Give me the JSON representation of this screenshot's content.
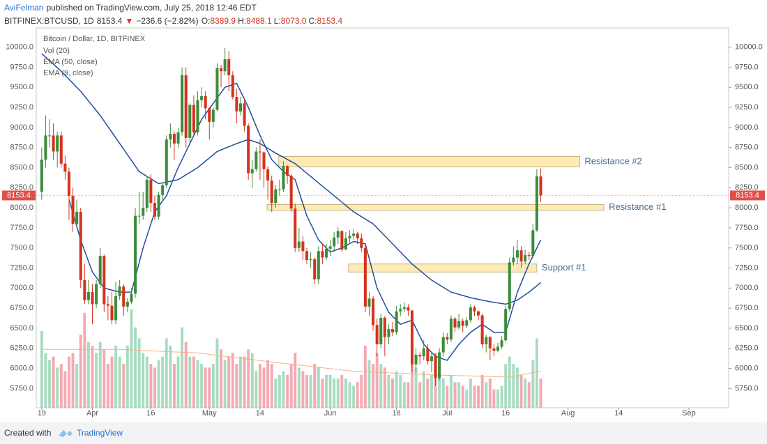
{
  "header": {
    "author": "AviFelman",
    "published": "published on TradingView.com, July 25, 2018 12:46 EDT"
  },
  "quote": {
    "symbol": "BITFINEX:BTCUSD, 1D",
    "last": "8153.4",
    "arrow": "▼",
    "change": "−236.6 (−2.82%)",
    "ohlc": [
      {
        "label": "O:",
        "value": "8389.9"
      },
      {
        "label": "H:",
        "value": "8488.1"
      },
      {
        "label": "L:",
        "value": "8073.0"
      },
      {
        "label": "C:",
        "value": "8153.4"
      }
    ]
  },
  "footer": {
    "created": "Created with",
    "brand": "TradingView"
  },
  "chart_data": {
    "type": "candlestick",
    "title": "Bitcoin / Dollar, 1D, BITFINEX",
    "up_color": "#3c8c3c",
    "down_color": "#d5321d",
    "volume_up_color": "#a8dcc0",
    "volume_down_color": "#f5a9b1",
    "open": [
      8200,
      8600,
      8900,
      8900,
      8700,
      8900,
      8550,
      8450,
      8150,
      7800,
      7950,
      7100,
      6850,
      6950,
      6800,
      7050,
      7400,
      6800,
      6780,
      6600,
      6900,
      7020,
      6770,
      6830,
      6930,
      7900,
      7900,
      8000,
      8350,
      8060,
      7890,
      8160,
      8280,
      8850,
      8920,
      8800,
      8940,
      9650,
      8870,
      9280,
      8940,
      9340,
      9390,
      9240,
      9070,
      9220,
      9740,
      9700,
      9850,
      9650,
      9380,
      9200,
      9300,
      9020,
      8430,
      8480,
      8700,
      8690,
      8480,
      8340,
      8060,
      8230,
      8230,
      8520,
      8400,
      7990,
      7500,
      7580,
      7460,
      7350,
      7360,
      7110,
      7460,
      7380,
      7490,
      7520,
      7630,
      7710,
      7480,
      7620,
      7650,
      7680,
      7620,
      7500,
      6770,
      6870,
      6540,
      6300,
      6630,
      6390,
      6490,
      6450,
      6710,
      6740,
      6760,
      6720,
      6050,
      6170,
      6150,
      6250,
      6090,
      6150,
      5880,
      6200,
      6390,
      6360,
      6620,
      6510,
      6590,
      6530,
      6600,
      6760,
      6710,
      6660,
      6300,
      6390,
      6250,
      6220,
      6270,
      6350,
      6740,
      7320,
      7380,
      7470,
      7330,
      7410,
      7400,
      7720,
      8389.9
    ],
    "high": [
      8750,
      9150,
      9100,
      9050,
      8950,
      8950,
      8650,
      8500,
      8250,
      8100,
      8000,
      7300,
      7100,
      7050,
      7100,
      7500,
      7420,
      6900,
      6950,
      7080,
      7100,
      7050,
      6880,
      7000,
      8000,
      8200,
      8200,
      8400,
      8420,
      8150,
      8200,
      8300,
      8900,
      9050,
      8950,
      9000,
      9750,
      9750,
      9300,
      9400,
      9450,
      9500,
      9450,
      9250,
      9250,
      9800,
      9780,
      9990,
      9950,
      9700,
      9480,
      9380,
      9350,
      9050,
      8600,
      8750,
      8850,
      8700,
      8520,
      8400,
      8280,
      8350,
      8580,
      8530,
      8420,
      8050,
      7750,
      7650,
      7500,
      7450,
      7380,
      7520,
      7550,
      7550,
      7600,
      7700,
      7760,
      7720,
      7700,
      7720,
      7740,
      7700,
      7680,
      7520,
      6950,
      6900,
      6620,
      6680,
      6650,
      6550,
      6580,
      6780,
      6800,
      6820,
      6800,
      6730,
      6250,
      6200,
      6350,
      6300,
      6200,
      6180,
      6250,
      6450,
      6440,
      6660,
      6640,
      6680,
      6620,
      6640,
      6800,
      6780,
      6720,
      6680,
      6420,
      6400,
      6300,
      6320,
      6400,
      6780,
      7380,
      7520,
      7600,
      7520,
      7480,
      7450,
      7800,
      8480,
      8488.1
    ],
    "low": [
      8100,
      8500,
      8750,
      8600,
      8500,
      8500,
      8350,
      7850,
      7700,
      7750,
      7000,
      6800,
      6800,
      6550,
      6750,
      7000,
      6700,
      6600,
      6550,
      6550,
      6850,
      6650,
      6700,
      6800,
      6880,
      7800,
      7850,
      7950,
      7950,
      7850,
      7850,
      8100,
      8250,
      8750,
      8600,
      8750,
      8900,
      8750,
      8800,
      8900,
      8900,
      9250,
      9100,
      8850,
      9000,
      9200,
      9500,
      9650,
      9450,
      9350,
      9050,
      9150,
      8950,
      8350,
      8250,
      8450,
      8350,
      8250,
      8100,
      7950,
      8000,
      8150,
      8200,
      8300,
      7950,
      7450,
      7450,
      7350,
      7300,
      7250,
      7050,
      7050,
      7300,
      7350,
      7400,
      7450,
      7550,
      7450,
      7470,
      7550,
      7600,
      7550,
      7450,
      6700,
      6650,
      6470,
      6150,
      6250,
      6150,
      6300,
      6400,
      6420,
      6650,
      6700,
      6650,
      5950,
      5950,
      6050,
      6100,
      6050,
      5950,
      5780,
      5850,
      6150,
      6300,
      6330,
      6450,
      6480,
      6450,
      6500,
      6570,
      6650,
      6600,
      6250,
      6200,
      6100,
      6150,
      6200,
      6240,
      6330,
      6710,
      7280,
      7300,
      7250,
      7300,
      7350,
      7380,
      7700,
      8073.0
    ],
    "close": [
      8600,
      8900,
      8900,
      8700,
      8900,
      8550,
      8450,
      8150,
      7800,
      7950,
      7100,
      6850,
      6950,
      6800,
      7050,
      7400,
      6800,
      6780,
      6600,
      6900,
      7020,
      6770,
      6830,
      6930,
      7900,
      7900,
      8000,
      8350,
      8060,
      7890,
      8160,
      8280,
      8850,
      8920,
      8800,
      8940,
      9650,
      8870,
      9280,
      8940,
      9340,
      9390,
      9240,
      9070,
      9220,
      9740,
      9700,
      9850,
      9650,
      9380,
      9200,
      9300,
      9020,
      8430,
      8480,
      8700,
      8690,
      8480,
      8340,
      8060,
      8230,
      8230,
      8520,
      8400,
      7990,
      7500,
      7580,
      7460,
      7350,
      7360,
      7110,
      7460,
      7380,
      7490,
      7520,
      7630,
      7710,
      7480,
      7620,
      7650,
      7680,
      7620,
      7500,
      6770,
      6870,
      6540,
      6300,
      6630,
      6390,
      6490,
      6450,
      6710,
      6740,
      6760,
      6720,
      6050,
      6170,
      6150,
      6250,
      6090,
      6150,
      5880,
      6200,
      6390,
      6360,
      6620,
      6510,
      6590,
      6530,
      6600,
      6760,
      6710,
      6660,
      6300,
      6390,
      6250,
      6220,
      6270,
      6350,
      6740,
      7320,
      7380,
      7470,
      7330,
      7410,
      7400,
      7720,
      8389.9,
      8153.4
    ],
    "volume": [
      105,
      75,
      65,
      70,
      55,
      60,
      50,
      70,
      75,
      60,
      100,
      130,
      90,
      85,
      75,
      90,
      80,
      60,
      70,
      85,
      70,
      60,
      85,
      135,
      110,
      95,
      75,
      70,
      60,
      55,
      65,
      70,
      95,
      85,
      60,
      70,
      110,
      90,
      70,
      70,
      65,
      60,
      55,
      55,
      60,
      95,
      80,
      65,
      70,
      75,
      60,
      70,
      70,
      80,
      75,
      50,
      60,
      55,
      65,
      60,
      40,
      45,
      50,
      45,
      60,
      75,
      55,
      50,
      45,
      45,
      60,
      55,
      40,
      45,
      45,
      40,
      40,
      45,
      40,
      35,
      30,
      35,
      45,
      85,
      65,
      60,
      75,
      60,
      55,
      45,
      40,
      50,
      45,
      35,
      35,
      80,
      55,
      35,
      50,
      40,
      45,
      75,
      55,
      40,
      30,
      45,
      35,
      35,
      30,
      25,
      40,
      30,
      30,
      45,
      35,
      40,
      25,
      25,
      30,
      60,
      70,
      60,
      55,
      45,
      40,
      35,
      65,
      95,
      40
    ],
    "volume_lim": [
      0,
      520
    ],
    "lines": [
      {
        "name": "Vol (20)",
        "color": "#f4b183",
        "scale": "volume",
        "x": [
          0,
          20,
          40,
          60,
          80,
          100,
          120,
          128
        ],
        "values": [
          80,
          80,
          75,
          62,
          50,
          45,
          42,
          50
        ]
      },
      {
        "name": "EMA (50, close)",
        "color": "#1f4e9c",
        "x": [
          0,
          5,
          10,
          15,
          20,
          25,
          30,
          35,
          40,
          45,
          50,
          53,
          56,
          60,
          65,
          70,
          75,
          80,
          85,
          90,
          95,
          100,
          105,
          110,
          115,
          119,
          122,
          125,
          128
        ],
        "values": [
          9920,
          9700,
          9450,
          9150,
          8800,
          8450,
          8300,
          8350,
          8500,
          8700,
          8800,
          8850,
          8800,
          8680,
          8550,
          8350,
          8150,
          7950,
          7800,
          7550,
          7300,
          7100,
          6950,
          6880,
          6830,
          6800,
          6850,
          6950,
          7070
        ]
      },
      {
        "name": "EMA (9, close)",
        "color": "#1f4e9c",
        "x": [
          7,
          10,
          13,
          16,
          20,
          23,
          26,
          29,
          32,
          35,
          38,
          41,
          44,
          47,
          50,
          53,
          56,
          59,
          62,
          65,
          68,
          71,
          74,
          77,
          80,
          83,
          86,
          89,
          92,
          95,
          98,
          101,
          104,
          107,
          110,
          113,
          116,
          119,
          122,
          125,
          128
        ],
        "values": [
          8100,
          7600,
          7200,
          7000,
          6950,
          6950,
          7500,
          7950,
          8150,
          8500,
          8800,
          9100,
          9300,
          9500,
          9550,
          9250,
          8900,
          8600,
          8450,
          8350,
          7900,
          7600,
          7450,
          7500,
          7580,
          7550,
          7000,
          6700,
          6550,
          6600,
          6300,
          6150,
          6100,
          6300,
          6450,
          6550,
          6450,
          6450,
          6950,
          7300,
          7600
        ]
      }
    ],
    "zones": [
      {
        "label": "Resistance #2",
        "x": [
          60.8,
          138
        ],
        "y": [
          8510,
          8640
        ]
      },
      {
        "label": "Resistance #1",
        "x": [
          57.8,
          144.2
        ],
        "y": [
          7970,
          8040
        ]
      },
      {
        "label": "Support #1",
        "x": [
          78.7,
          127
        ],
        "y": [
          7200,
          7300
        ]
      }
    ],
    "zone_color": "#fde6a8",
    "price_line_color": "#e0504a",
    "xlim": [
      -1.4,
      176.2
    ],
    "ylim": [
      5510,
      10240
    ],
    "grid": false,
    "xticks": [
      {
        "value": 0,
        "label": "19"
      },
      {
        "value": 13,
        "label": "Apr"
      },
      {
        "value": 28,
        "label": "16"
      },
      {
        "value": 43,
        "label": "May"
      },
      {
        "value": 56,
        "label": "14"
      },
      {
        "value": 74,
        "label": "Jun"
      },
      {
        "value": 91,
        "label": "18"
      },
      {
        "value": 104,
        "label": "Jul"
      },
      {
        "value": 119,
        "label": "16"
      },
      {
        "value": 135,
        "label": "Aug"
      },
      {
        "value": 148,
        "label": "14"
      },
      {
        "value": 166,
        "label": "Sep"
      }
    ],
    "yticks": [
      {
        "value": 5750,
        "label": "5750.0"
      },
      {
        "value": 6000,
        "label": "6000.0"
      },
      {
        "value": 6250,
        "label": "6250.0"
      },
      {
        "value": 6500,
        "label": "6500.0"
      },
      {
        "value": 6750,
        "label": "6750.0"
      },
      {
        "value": 7000,
        "label": "7000.0"
      },
      {
        "value": 7250,
        "label": "7250.0"
      },
      {
        "value": 7500,
        "label": "7500.0"
      },
      {
        "value": 7750,
        "label": "7750.0"
      },
      {
        "value": 8000,
        "label": "8000.0"
      },
      {
        "value": 8250,
        "label": "8250.0"
      },
      {
        "value": 8500,
        "label": "8500.0"
      },
      {
        "value": 8750,
        "label": "8750.0"
      },
      {
        "value": 9000,
        "label": "9000.0"
      },
      {
        "value": 9250,
        "label": "9250.0"
      },
      {
        "value": 9500,
        "label": "9500.0"
      },
      {
        "value": 9750,
        "label": "9750.0"
      },
      {
        "value": 10000,
        "label": "10000.0"
      }
    ]
  }
}
